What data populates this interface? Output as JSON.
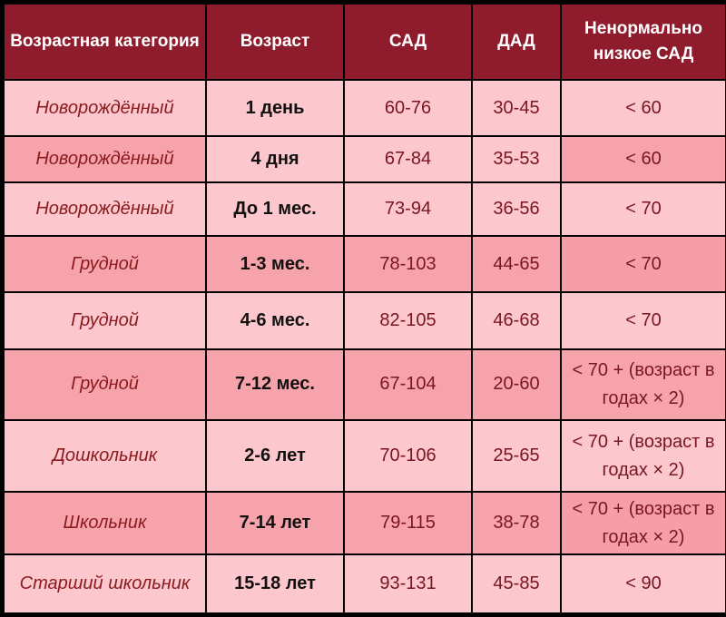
{
  "table": {
    "headers": [
      "Возрастная категория",
      "Возраст",
      "САД",
      "ДАД",
      "Ненормально низкое САД"
    ],
    "rows": [
      {
        "category": "Новорождённый",
        "age": "1 день",
        "sbp": "60-76",
        "dbp": "30-45",
        "low_sbp": "< 60"
      },
      {
        "category": "Новорождённый",
        "age": "4 дня",
        "sbp": "67-84",
        "dbp": "35-53",
        "low_sbp": "< 60"
      },
      {
        "category": "Новорождённый",
        "age": "До 1 мес.",
        "sbp": "73-94",
        "dbp": "36-56",
        "low_sbp": "< 70"
      },
      {
        "category": "Грудной",
        "age": "1-3 мес.",
        "sbp": "78-103",
        "dbp": "44-65",
        "low_sbp": "< 70"
      },
      {
        "category": "Грудной",
        "age": "4-6 мес.",
        "sbp": "82-105",
        "dbp": "46-68",
        "low_sbp": "< 70"
      },
      {
        "category": "Грудной",
        "age": "7-12 мес.",
        "sbp": "67-104",
        "dbp": "20-60",
        "low_sbp": "< 70 + (возраст в годах × 2)"
      },
      {
        "category": "Дошкольник",
        "age": "2-6 лет",
        "sbp": "70-106",
        "dbp": "25-65",
        "low_sbp": "< 70 + (возраст в годах × 2)"
      },
      {
        "category": "Школьник",
        "age": "7-14 лет",
        "sbp": "79-115",
        "dbp": "38-78",
        "low_sbp": "< 70 + (возраст в годах × 2)"
      },
      {
        "category": "Старший школьник",
        "age": "15-18 лет",
        "sbp": "93-131",
        "dbp": "45-85",
        "low_sbp": "< 90"
      }
    ]
  },
  "colors": {
    "header_bg": "#8e1c2c",
    "row_light": "#fcc7cd",
    "row_dark": "#f7a3ab",
    "category_text": "#8a1a1e",
    "value_text": "#7a1622",
    "border": "#000000"
  }
}
